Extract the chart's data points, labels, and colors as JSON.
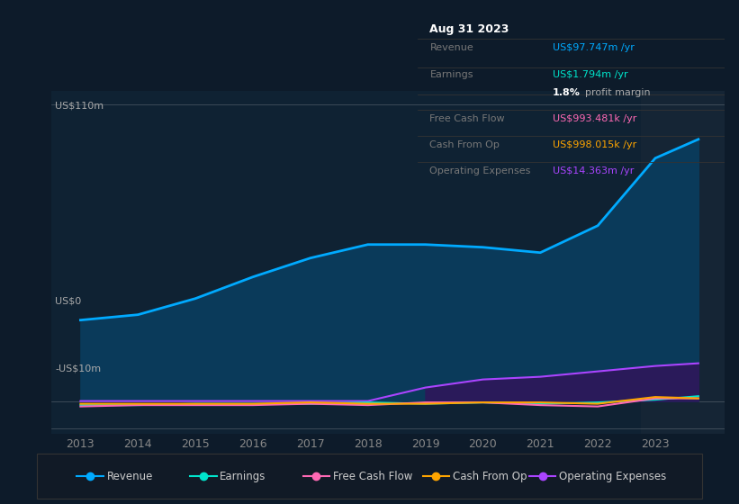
{
  "bg_color": "#0d1b2a",
  "chart_area_color": "#0f2233",
  "xlim": [
    2012.5,
    2024.2
  ],
  "ylim": [
    -12,
    115
  ],
  "xticks": [
    2013,
    2014,
    2015,
    2016,
    2017,
    2018,
    2019,
    2020,
    2021,
    2022,
    2023
  ],
  "revenue_color": "#00aaff",
  "earnings_color": "#00e5cc",
  "fcf_color": "#ff69b4",
  "cashfromop_color": "#ffa500",
  "opex_color": "#aa44ff",
  "revenue_fill_color": "#0a3a5a",
  "opex_fill_color": "#2a1a5a",
  "legend_items": [
    {
      "label": "Revenue",
      "color": "#00aaff"
    },
    {
      "label": "Earnings",
      "color": "#00e5cc"
    },
    {
      "label": "Free Cash Flow",
      "color": "#ff69b4"
    },
    {
      "label": "Cash From Op",
      "color": "#ffa500"
    },
    {
      "label": "Operating Expenses",
      "color": "#aa44ff"
    }
  ],
  "tooltip_date": "Aug 31 2023",
  "tooltip_rows": [
    {
      "label": "Revenue",
      "value": "US$97.747m /yr",
      "value_color": "#00aaff"
    },
    {
      "label": "Earnings",
      "value": "US$1.794m /yr",
      "value_color": "#00e5cc"
    },
    {
      "label": "",
      "value": "1.8% profit margin",
      "value_color": "#cccccc"
    },
    {
      "label": "Free Cash Flow",
      "value": "US$993.481k /yr",
      "value_color": "#ff69b4"
    },
    {
      "label": "Cash From Op",
      "value": "US$998.015k /yr",
      "value_color": "#ffa500"
    },
    {
      "label": "Operating Expenses",
      "value": "US$14.363m /yr",
      "value_color": "#aa44ff"
    }
  ],
  "revenue": [
    30,
    32,
    38,
    46,
    53,
    58,
    58,
    57,
    55,
    65,
    90,
    97
  ],
  "earnings": [
    -1.5,
    -1.5,
    -1,
    -1,
    -1,
    -0.5,
    -1,
    -0.5,
    -1,
    -0.5,
    0.5,
    1.8
  ],
  "free_cash_flow": [
    -2,
    -1.5,
    -1.5,
    -1.5,
    -1,
    -1.5,
    -0.5,
    -0.5,
    -1.5,
    -2,
    1,
    1
  ],
  "cash_from_op": [
    -1,
    -1,
    -1,
    -1,
    -0.5,
    -1,
    -1,
    -0.5,
    -0.5,
    -1,
    1.5,
    1
  ],
  "opex": [
    0,
    0,
    0,
    0,
    0,
    0,
    5,
    8,
    9,
    11,
    13,
    14
  ],
  "years": [
    2013,
    2014,
    2015,
    2016,
    2017,
    2018,
    2019,
    2020,
    2021,
    2022,
    2023,
    2023.75
  ]
}
